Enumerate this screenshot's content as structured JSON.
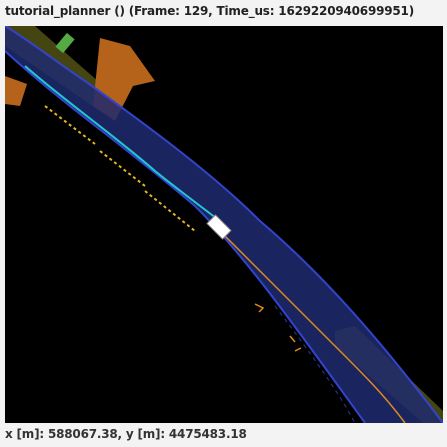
{
  "window": {
    "title": "tutorial_planner () (Frame: 129, Time_us: 1629220940699951)"
  },
  "status": {
    "coords": "x [m]: 588067.38, y [m]: 4475483.18"
  },
  "colors": {
    "background": "#000000",
    "lane_fill": "#1e2a6e",
    "lane_boundary": "#3344cc",
    "reference_line": "#e08a1e",
    "planned_trajectory": "#22c8d0",
    "ego_vehicle": "#ffffff",
    "crosswalk": "#c46a18",
    "sidewalk": "#5a5a18",
    "dashed_marking": "#e6b820",
    "agent": "#55aa44"
  },
  "icons": {
    "ego": "ego-vehicle-icon"
  }
}
